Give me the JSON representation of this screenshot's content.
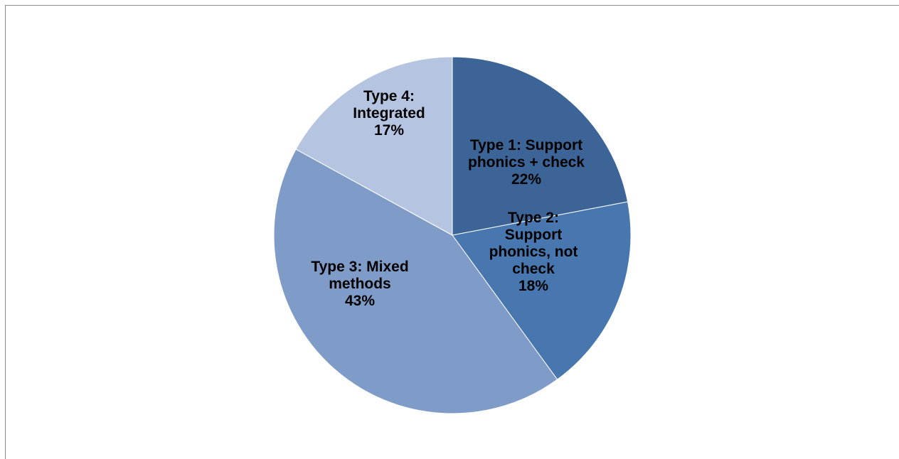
{
  "chart_data": {
    "type": "pie",
    "title": "",
    "legend": "none",
    "slices": [
      {
        "label_lines": [
          "Type 1: Support",
          "phonics + check"
        ],
        "percent_label": "22%",
        "value": 22,
        "color": "#3d6496"
      },
      {
        "label_lines": [
          "Type 2:",
          "Support",
          "phonics, not",
          "check"
        ],
        "percent_label": "18%",
        "value": 18,
        "color": "#4777ae"
      },
      {
        "label_lines": [
          "Type 3: Mixed",
          "methods"
        ],
        "percent_label": "43%",
        "value": 43,
        "color": "#7f9cc8"
      },
      {
        "label_lines": [
          "Type 4:",
          "Integrated"
        ],
        "percent_label": "17%",
        "value": 17,
        "color": "#b5c4e0"
      }
    ]
  }
}
